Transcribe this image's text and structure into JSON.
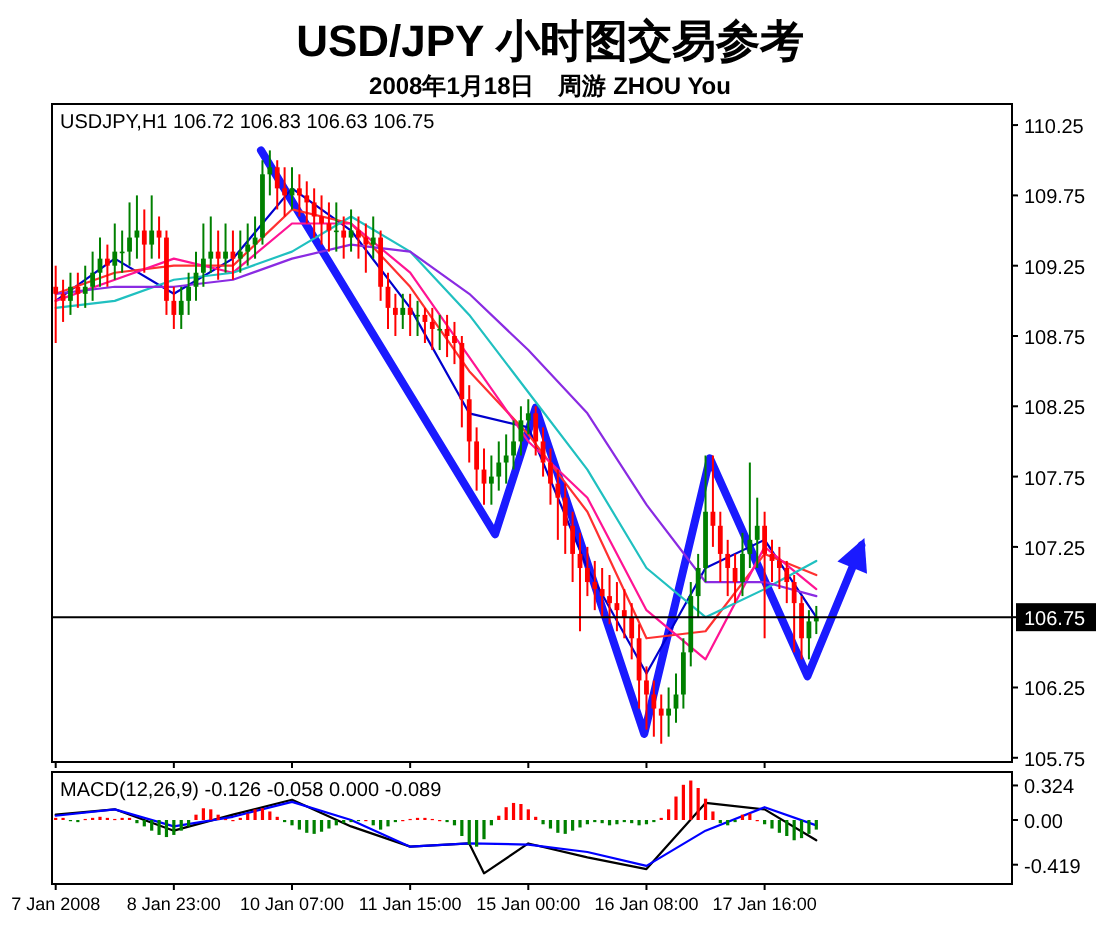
{
  "chart_data": [
    {
      "type": "candlestick",
      "title": "USD/JPY 小时图交易参考",
      "subtitle": "2008年1月18日　周游 ZHOU You",
      "annotations": [
        "USDJPY,H1  106.72 106.83 106.63 106.75"
      ],
      "ylim": [
        105.72,
        110.4
      ],
      "yticks": [
        105.75,
        106.25,
        106.75,
        107.25,
        107.75,
        108.25,
        108.75,
        109.25,
        109.75,
        110.25
      ],
      "categories": [
        "7 Jan 2008",
        null,
        null,
        null,
        null,
        null,
        null,
        null,
        null,
        null,
        null,
        null,
        null,
        null,
        null,
        null,
        "8 Jan 23:00",
        null,
        null,
        null,
        null,
        null,
        null,
        null,
        null,
        null,
        null,
        null,
        null,
        null,
        null,
        null,
        "10 Jan 07:00",
        null,
        null,
        null,
        null,
        null,
        null,
        null,
        null,
        null,
        null,
        null,
        null,
        null,
        null,
        null,
        "11 Jan 15:00",
        null,
        null,
        null,
        null,
        null,
        null,
        null,
        null,
        null,
        null,
        null,
        null,
        null,
        null,
        null,
        "15 Jan 00:00",
        null,
        null,
        null,
        null,
        null,
        null,
        null,
        null,
        null,
        null,
        null,
        null,
        null,
        null,
        null,
        "16 Jan 08:00",
        null,
        null,
        null,
        null,
        null,
        null,
        null,
        null,
        null,
        null,
        null,
        null,
        null,
        null,
        null,
        "17 Jan 16:00",
        null,
        null,
        null,
        null,
        null,
        null,
        null,
        null,
        null,
        null,
        null,
        null,
        null,
        null,
        null,
        null,
        null,
        null,
        null,
        null,
        null,
        null,
        null,
        null,
        null,
        null,
        null,
        null,
        null,
        null,
        null,
        null,
        null
      ],
      "colors": [
        "#ff0000",
        "#ff0000",
        "#008000",
        "#ff0000",
        "#008000",
        "#008000",
        "#008000",
        "#ff0000",
        "#008000",
        "#008000",
        "#008000",
        "#008000",
        "#ff0000",
        "#008000",
        "#ff0000",
        "#ff0000",
        "#ff0000",
        "#008000",
        "#008000",
        "#008000",
        "#008000",
        "#008000",
        "#ff0000",
        "#008000",
        "#ff0000",
        "#008000",
        "#008000",
        "#008000",
        "#008000",
        "#008000",
        "#ff0000",
        "#ff0000",
        "#008000",
        "#ff0000",
        "#ff0000",
        "#ff0000",
        "#ff0000",
        "#ff0000",
        "#008000",
        "#ff0000",
        "#008000",
        "#ff0000",
        "#ff0000",
        "#008000",
        "#ff0000",
        "#ff0000",
        "#ff0000",
        "#008000",
        "#ff0000",
        "#008000",
        "#ff0000",
        "#ff0000",
        "#008000",
        "#ff0000",
        "#ff0000",
        "#ff0000",
        "#ff0000",
        "#ff0000",
        "#ff0000",
        "#008000",
        "#008000",
        "#008000",
        "#008000",
        "#008000",
        "#008000",
        "#ff0000",
        "#ff0000",
        "#ff0000",
        "#ff0000",
        "#ff0000",
        "#ff0000",
        "#ff0000",
        "#ff0000",
        "#ff0000",
        "#ff0000",
        "#ff0000",
        "#ff0000",
        "#ff0000",
        "#ff0000",
        "#ff0000",
        "#ff0000",
        "#ff0000",
        "#ff0000",
        "#008000",
        "#008000",
        "#008000",
        "#008000",
        "#008000",
        "#008000",
        "#ff0000",
        "#ff0000",
        "#ff0000",
        "#ff0000",
        "#008000",
        "#008000",
        "#008000",
        "#ff0000",
        "#ff0000",
        "#ff0000",
        "#ff0000",
        "#ff0000",
        "#ff0000",
        "#008000",
        "#008000",
        null,
        null,
        null,
        null,
        null,
        null,
        null,
        null,
        null,
        null,
        null,
        null,
        null,
        null,
        null,
        null,
        null,
        null,
        null,
        null,
        null,
        null,
        null,
        null,
        null,
        null
      ],
      "ohlc": [
        [
          109.1,
          109.25,
          108.7,
          109.05
        ],
        [
          109.05,
          109.15,
          108.85,
          109.0
        ],
        [
          109.0,
          109.2,
          108.9,
          109.1
        ],
        [
          109.1,
          109.2,
          108.95,
          109.05
        ],
        [
          109.05,
          109.25,
          108.95,
          109.1
        ],
        [
          109.1,
          109.35,
          109.0,
          109.2
        ],
        [
          109.2,
          109.45,
          109.1,
          109.3
        ],
        [
          109.3,
          109.4,
          109.1,
          109.25
        ],
        [
          109.25,
          109.55,
          109.15,
          109.35
        ],
        [
          109.35,
          109.5,
          109.2,
          109.35
        ],
        [
          109.35,
          109.7,
          109.25,
          109.45
        ],
        [
          109.45,
          109.75,
          109.3,
          109.5
        ],
        [
          109.5,
          109.65,
          109.2,
          109.4
        ],
        [
          109.4,
          109.75,
          109.3,
          109.5
        ],
        [
          109.5,
          109.6,
          109.3,
          109.45
        ],
        [
          109.45,
          109.5,
          108.9,
          109.0
        ],
        [
          109.0,
          109.1,
          108.8,
          108.9
        ],
        [
          108.9,
          109.1,
          108.8,
          109.0
        ],
        [
          109.0,
          109.2,
          108.9,
          109.1
        ],
        [
          109.1,
          109.35,
          109.0,
          109.2
        ],
        [
          109.2,
          109.55,
          109.1,
          109.3
        ],
        [
          109.3,
          109.6,
          109.2,
          109.35
        ],
        [
          109.35,
          109.5,
          109.15,
          109.3
        ],
        [
          109.3,
          109.55,
          109.2,
          109.35
        ],
        [
          109.35,
          109.5,
          109.15,
          109.3
        ],
        [
          109.3,
          109.5,
          109.2,
          109.35
        ],
        [
          109.35,
          109.55,
          109.25,
          109.4
        ],
        [
          109.4,
          109.6,
          109.3,
          109.45
        ],
        [
          109.45,
          110.0,
          109.4,
          109.9
        ],
        [
          109.9,
          110.07,
          109.75,
          109.95
        ],
        [
          109.95,
          110.0,
          109.65,
          109.8
        ],
        [
          109.8,
          109.95,
          109.6,
          109.75
        ],
        [
          109.75,
          109.95,
          109.65,
          109.8
        ],
        [
          109.8,
          109.9,
          109.6,
          109.75
        ],
        [
          109.75,
          109.85,
          109.55,
          109.7
        ],
        [
          109.7,
          109.8,
          109.45,
          109.6
        ],
        [
          109.6,
          109.75,
          109.4,
          109.55
        ],
        [
          109.55,
          109.7,
          109.35,
          109.5
        ],
        [
          109.5,
          109.7,
          109.35,
          109.5
        ],
        [
          109.5,
          109.6,
          109.3,
          109.45
        ],
        [
          109.45,
          109.65,
          109.35,
          109.5
        ],
        [
          109.5,
          109.6,
          109.3,
          109.45
        ],
        [
          109.45,
          109.55,
          109.2,
          109.4
        ],
        [
          109.4,
          109.6,
          109.3,
          109.45
        ],
        [
          109.45,
          109.5,
          109.0,
          109.1
        ],
        [
          109.1,
          109.2,
          108.8,
          108.95
        ],
        [
          108.95,
          109.05,
          108.75,
          108.9
        ],
        [
          108.9,
          109.05,
          108.8,
          108.95
        ],
        [
          108.95,
          109.05,
          108.75,
          108.9
        ],
        [
          108.9,
          109.0,
          108.75,
          108.9
        ],
        [
          108.9,
          108.95,
          108.7,
          108.85
        ],
        [
          108.85,
          108.95,
          108.65,
          108.8
        ],
        [
          108.8,
          108.9,
          108.65,
          108.8
        ],
        [
          108.8,
          108.9,
          108.6,
          108.75
        ],
        [
          108.75,
          108.85,
          108.55,
          108.7
        ],
        [
          108.7,
          108.75,
          108.1,
          108.3
        ],
        [
          108.3,
          108.4,
          107.85,
          108.0
        ],
        [
          108.0,
          108.1,
          107.65,
          107.8
        ],
        [
          107.8,
          107.95,
          107.55,
          107.7
        ],
        [
          107.7,
          107.9,
          107.55,
          107.75
        ],
        [
          107.75,
          108.0,
          107.65,
          107.85
        ],
        [
          107.85,
          108.05,
          107.7,
          107.9
        ],
        [
          107.9,
          108.15,
          107.8,
          108.0
        ],
        [
          108.0,
          108.25,
          107.9,
          108.15
        ],
        [
          108.15,
          108.3,
          108.05,
          108.2
        ],
        [
          108.2,
          108.25,
          107.9,
          108.0
        ],
        [
          108.0,
          108.1,
          107.75,
          107.85
        ],
        [
          107.85,
          107.95,
          107.55,
          107.7
        ],
        [
          107.7,
          107.8,
          107.3,
          107.6
        ],
        [
          107.6,
          107.7,
          107.2,
          107.4
        ],
        [
          107.4,
          107.5,
          107.0,
          107.2
        ],
        [
          107.2,
          107.35,
          106.65,
          107.1
        ],
        [
          107.1,
          107.25,
          106.9,
          107.0
        ],
        [
          107.0,
          107.15,
          106.8,
          106.95
        ],
        [
          106.95,
          107.1,
          106.75,
          106.9
        ],
        [
          106.9,
          107.05,
          106.7,
          106.85
        ],
        [
          106.85,
          107.0,
          106.65,
          106.8
        ],
        [
          106.8,
          106.95,
          106.6,
          106.75
        ],
        [
          106.75,
          106.85,
          106.45,
          106.6
        ],
        [
          106.6,
          106.7,
          106.1,
          106.3
        ],
        [
          106.3,
          106.4,
          105.95,
          106.2
        ],
        [
          106.2,
          106.3,
          105.9,
          106.1
        ],
        [
          106.1,
          106.2,
          105.85,
          106.05
        ],
        [
          106.05,
          106.25,
          105.9,
          106.1
        ],
        [
          106.1,
          106.35,
          106.0,
          106.2
        ],
        [
          106.2,
          106.6,
          106.1,
          106.5
        ],
        [
          106.5,
          107.0,
          106.4,
          106.9
        ],
        [
          106.9,
          107.2,
          106.75,
          107.1
        ],
        [
          107.1,
          107.9,
          107.0,
          107.5
        ],
        [
          107.5,
          107.9,
          107.25,
          107.4
        ],
        [
          107.4,
          107.5,
          107.0,
          107.2
        ],
        [
          107.2,
          107.3,
          106.9,
          107.1
        ],
        [
          107.1,
          107.2,
          106.85,
          107.0
        ],
        [
          107.0,
          107.35,
          106.9,
          107.2
        ],
        [
          107.2,
          107.85,
          107.1,
          107.3
        ],
        [
          107.3,
          107.6,
          107.1,
          107.4
        ],
        [
          107.4,
          107.5,
          106.6,
          107.2
        ],
        [
          107.2,
          107.3,
          107.0,
          107.15
        ],
        [
          107.15,
          107.25,
          106.95,
          107.1
        ],
        [
          107.1,
          107.15,
          106.85,
          107.0
        ],
        [
          107.0,
          107.05,
          106.5,
          106.85
        ],
        [
          106.85,
          106.9,
          106.45,
          106.6
        ],
        [
          106.6,
          106.8,
          106.45,
          106.72
        ],
        [
          106.72,
          106.83,
          106.63,
          106.75
        ],
        null,
        null,
        null,
        null,
        null,
        null,
        null,
        null,
        null,
        null,
        null,
        null,
        null,
        null,
        null,
        null,
        null,
        null,
        null,
        null,
        null,
        null,
        null,
        null,
        null,
        null
      ],
      "series": [
        {
          "type": "line",
          "color": "#0000cd",
          "values": [
            109.0,
            null,
            null,
            null,
            null,
            null,
            null,
            null,
            109.3,
            null,
            null,
            null,
            null,
            null,
            null,
            null,
            109.05,
            null,
            null,
            null,
            null,
            null,
            null,
            null,
            109.3,
            null,
            null,
            null,
            null,
            null,
            null,
            null,
            109.8,
            null,
            null,
            null,
            null,
            null,
            null,
            null,
            109.5,
            null,
            null,
            null,
            null,
            null,
            null,
            null,
            108.95,
            null,
            null,
            null,
            null,
            null,
            null,
            null,
            108.2,
            null,
            null,
            null,
            null,
            null,
            null,
            null,
            108.1,
            null,
            null,
            null,
            null,
            null,
            null,
            null,
            107.1,
            null,
            null,
            null,
            null,
            null,
            null,
            null,
            106.35,
            null,
            null,
            null,
            null,
            null,
            null,
            null,
            107.1,
            null,
            null,
            null,
            null,
            null,
            null,
            null,
            107.3,
            null,
            null,
            null,
            null,
            null,
            null,
            106.75,
            null,
            null,
            null,
            null,
            null,
            null,
            null,
            null,
            null,
            null,
            null,
            null,
            null,
            null,
            null,
            null,
            null,
            null,
            null,
            null,
            null,
            null,
            null,
            null,
            null,
            null
          ]
        },
        {
          "type": "line",
          "color": "#ff3030",
          "values": [
            109.05,
            null,
            null,
            null,
            null,
            null,
            null,
            null,
            109.2,
            null,
            null,
            null,
            null,
            null,
            null,
            null,
            109.25,
            null,
            null,
            null,
            null,
            null,
            null,
            null,
            109.25,
            null,
            null,
            null,
            null,
            null,
            null,
            null,
            109.65,
            null,
            null,
            null,
            null,
            null,
            null,
            null,
            109.55,
            null,
            null,
            null,
            null,
            null,
            null,
            null,
            109.1,
            null,
            null,
            null,
            null,
            null,
            null,
            null,
            108.5,
            null,
            null,
            null,
            null,
            null,
            null,
            null,
            108.05,
            null,
            null,
            null,
            null,
            null,
            null,
            null,
            107.5,
            null,
            null,
            null,
            null,
            null,
            null,
            null,
            106.6,
            null,
            null,
            null,
            null,
            null,
            null,
            null,
            106.65,
            null,
            null,
            null,
            null,
            null,
            null,
            null,
            107.2,
            null,
            null,
            null,
            null,
            null,
            null,
            107.05,
            null,
            null,
            null,
            null,
            null,
            null,
            null,
            null,
            null,
            null,
            null,
            null,
            null,
            null,
            null,
            null,
            null,
            null,
            null,
            null,
            null,
            null,
            null,
            null,
            null,
            null
          ]
        },
        {
          "type": "line",
          "color": "#ff1493",
          "values": [
            109.0,
            null,
            null,
            null,
            null,
            null,
            null,
            null,
            109.15,
            null,
            null,
            null,
            null,
            null,
            null,
            null,
            109.3,
            null,
            null,
            null,
            null,
            null,
            null,
            null,
            109.2,
            null,
            null,
            null,
            null,
            null,
            null,
            null,
            109.55,
            null,
            null,
            null,
            null,
            null,
            null,
            null,
            109.55,
            null,
            null,
            null,
            null,
            null,
            null,
            null,
            109.2,
            null,
            null,
            null,
            null,
            null,
            null,
            null,
            108.6,
            null,
            null,
            null,
            null,
            null,
            null,
            null,
            108.0,
            null,
            null,
            null,
            null,
            null,
            null,
            null,
            107.6,
            null,
            null,
            null,
            null,
            null,
            null,
            null,
            106.8,
            null,
            null,
            null,
            null,
            null,
            null,
            null,
            106.45,
            null,
            null,
            null,
            null,
            null,
            null,
            null,
            107.25,
            null,
            null,
            null,
            null,
            null,
            null,
            106.95,
            null,
            null,
            null,
            null,
            null,
            null,
            null,
            null,
            null,
            null,
            null,
            null,
            null,
            null,
            null,
            null,
            null,
            null,
            null,
            null,
            null,
            null,
            null,
            null,
            null,
            null
          ]
        },
        {
          "type": "line",
          "color": "#20c0c0",
          "values": [
            108.95,
            null,
            null,
            null,
            null,
            null,
            null,
            null,
            109.0,
            null,
            null,
            null,
            null,
            null,
            null,
            null,
            109.15,
            null,
            null,
            null,
            null,
            null,
            null,
            null,
            109.2,
            null,
            null,
            null,
            null,
            null,
            null,
            null,
            109.35,
            null,
            null,
            null,
            null,
            null,
            null,
            null,
            109.6,
            null,
            null,
            null,
            null,
            null,
            null,
            null,
            109.35,
            null,
            null,
            null,
            null,
            null,
            null,
            null,
            108.9,
            null,
            null,
            null,
            null,
            null,
            null,
            null,
            108.35,
            null,
            null,
            null,
            null,
            null,
            null,
            null,
            107.8,
            null,
            null,
            null,
            null,
            null,
            null,
            null,
            107.1,
            null,
            null,
            null,
            null,
            null,
            null,
            null,
            106.75,
            null,
            null,
            null,
            null,
            null,
            null,
            null,
            106.95,
            null,
            null,
            null,
            null,
            null,
            null,
            107.15,
            null,
            null,
            null,
            null,
            null,
            null,
            null,
            null,
            null,
            null,
            null,
            null,
            null,
            null,
            null,
            null,
            null,
            null,
            null,
            null,
            null,
            null,
            null,
            null,
            null,
            null
          ]
        },
        {
          "type": "line",
          "color": "#8a2be2",
          "values": [
            109.05,
            null,
            null,
            null,
            null,
            null,
            null,
            null,
            109.1,
            null,
            null,
            null,
            null,
            null,
            null,
            null,
            109.1,
            null,
            null,
            null,
            null,
            null,
            null,
            null,
            109.15,
            null,
            null,
            null,
            null,
            null,
            null,
            null,
            109.3,
            null,
            null,
            null,
            null,
            null,
            null,
            null,
            109.4,
            null,
            null,
            null,
            null,
            null,
            null,
            null,
            109.35,
            null,
            null,
            null,
            null,
            null,
            null,
            null,
            109.05,
            null,
            null,
            null,
            null,
            null,
            null,
            null,
            108.65,
            null,
            null,
            null,
            null,
            null,
            null,
            null,
            108.2,
            null,
            null,
            null,
            null,
            null,
            null,
            null,
            107.55,
            null,
            null,
            null,
            null,
            null,
            null,
            null,
            107.0,
            null,
            null,
            null,
            null,
            null,
            null,
            null,
            107.0,
            null,
            null,
            null,
            null,
            null,
            null,
            106.9,
            null,
            null,
            null,
            null,
            null,
            null,
            null,
            null,
            null,
            null,
            null,
            null,
            null,
            null,
            null,
            null,
            null,
            null,
            null,
            null,
            null,
            null,
            null,
            null,
            null,
            null
          ]
        }
      ],
      "ref_lines": [
        {
          "axis": "y",
          "value": 106.75,
          "label": "106.75",
          "color": "#000000"
        }
      ]
    },
    {
      "type": "bar",
      "annotations": [
        "MACD(12,26,9) -0.126 -0.058 0.000 -0.089"
      ],
      "ylim": [
        -0.6,
        0.45
      ],
      "yticks": [
        -0.419,
        {
          "value": 0,
          "label": "0.00"
        },
        0.324
      ],
      "tick_labels": "y",
      "categories": [
        null,
        null,
        null,
        null,
        null,
        null,
        null,
        null,
        null,
        null,
        null,
        null,
        null,
        null,
        null,
        null,
        null,
        null,
        null,
        null,
        null,
        null,
        null,
        null,
        null,
        null,
        null,
        null,
        null,
        null,
        null,
        null,
        null,
        null,
        null,
        null,
        null,
        null,
        null,
        null,
        null,
        null,
        null,
        null,
        null,
        null,
        null,
        null,
        null,
        null,
        null,
        null,
        null,
        null,
        null,
        null,
        null,
        null,
        null,
        null,
        null,
        null,
        null,
        null,
        null,
        null,
        null,
        null,
        null,
        null,
        null,
        null,
        null,
        null,
        null,
        null,
        null,
        null,
        null,
        null,
        null,
        null,
        null,
        null,
        null,
        null,
        null,
        null,
        null,
        null,
        null,
        null,
        null,
        null,
        null,
        null,
        null,
        null,
        null,
        null,
        null,
        null,
        null,
        null,
        null,
        null,
        null,
        null,
        null,
        null,
        null,
        null,
        null,
        null,
        null,
        null,
        null,
        null,
        null,
        null,
        null,
        null,
        null,
        null,
        null,
        null,
        null,
        null,
        null,
        null
      ],
      "colors": [
        "#ff0000",
        "#ff0000",
        "#008000",
        "#008000",
        "#ff0000",
        "#ff0000",
        "#ff0000",
        "#ff0000",
        "#ff0000",
        "#ff0000",
        "#ff0000",
        "#008000",
        "#008000",
        "#008000",
        "#008000",
        "#008000",
        "#008000",
        "#008000",
        "#008000",
        "#ff0000",
        "#ff0000",
        "#ff0000",
        "#ff0000",
        "#ff0000",
        "#ff0000",
        "#ff0000",
        "#ff0000",
        "#ff0000",
        "#ff0000",
        "#ff0000",
        "#ff0000",
        "#008000",
        "#008000",
        "#008000",
        "#008000",
        "#008000",
        "#008000",
        "#008000",
        "#008000",
        "#008000",
        "#008000",
        "#008000",
        "#ff0000",
        "#008000",
        "#008000",
        "#008000",
        "#008000",
        "#ff0000",
        "#ff0000",
        "#ff0000",
        "#ff0000",
        "#ff0000",
        "#ff0000",
        "#008000",
        "#008000",
        "#008000",
        "#008000",
        "#008000",
        "#008000",
        "#008000",
        "#ff0000",
        "#ff0000",
        "#ff0000",
        "#ff0000",
        "#ff0000",
        "#ff0000",
        "#008000",
        "#008000",
        "#008000",
        "#008000",
        "#008000",
        "#008000",
        "#008000",
        "#008000",
        "#008000",
        "#008000",
        "#008000",
        "#008000",
        "#008000",
        "#008000",
        "#008000",
        "#008000",
        "#ff0000",
        "#ff0000",
        "#ff0000",
        "#ff0000",
        "#ff0000",
        "#ff0000",
        "#ff0000",
        "#ff0000",
        "#008000",
        "#008000",
        "#008000",
        "#ff0000",
        "#ff0000",
        "#ff0000",
        "#008000",
        "#008000",
        "#008000",
        "#008000",
        "#008000",
        "#008000",
        "#008000",
        "#008000",
        null,
        null,
        null,
        null,
        null,
        null,
        null,
        null,
        null,
        null,
        null,
        null,
        null,
        null,
        null,
        null,
        null,
        null,
        null,
        null,
        null,
        null,
        null,
        null,
        null,
        null
      ],
      "values": [
        0.02,
        0.02,
        -0.01,
        -0.02,
        0.01,
        0.02,
        0.03,
        0.02,
        0.01,
        0.02,
        0.02,
        -0.03,
        -0.06,
        -0.1,
        -0.14,
        -0.16,
        -0.14,
        -0.1,
        -0.06,
        0.05,
        0.11,
        0.1,
        0.05,
        0.01,
        0.0,
        0.02,
        0.06,
        0.1,
        0.11,
        0.08,
        0.03,
        -0.02,
        -0.05,
        -0.09,
        -0.12,
        -0.13,
        -0.11,
        -0.08,
        -0.05,
        -0.03,
        -0.02,
        -0.01,
        0.0,
        -0.05,
        -0.09,
        -0.06,
        -0.02,
        0.0,
        0.01,
        0.02,
        0.02,
        0.01,
        0.0,
        -0.02,
        -0.05,
        -0.15,
        -0.23,
        -0.25,
        -0.18,
        -0.05,
        0.04,
        0.12,
        0.16,
        0.15,
        0.1,
        0.03,
        -0.04,
        -0.08,
        -0.12,
        -0.13,
        -0.1,
        -0.07,
        -0.04,
        -0.02,
        -0.03,
        -0.05,
        -0.04,
        -0.02,
        -0.03,
        -0.05,
        -0.04,
        -0.02,
        0.02,
        0.1,
        0.22,
        0.33,
        0.37,
        0.3,
        0.2,
        0.08,
        -0.03,
        -0.05,
        -0.02,
        0.05,
        0.06,
        0.0,
        -0.04,
        -0.08,
        -0.12,
        -0.15,
        -0.19,
        -0.17,
        -0.13,
        -0.09,
        null,
        null,
        null,
        null,
        null,
        null,
        null,
        null,
        null,
        null,
        null,
        null,
        null,
        null,
        null,
        null,
        null,
        null,
        null,
        null,
        null,
        null,
        null,
        null,
        null,
        null
      ],
      "series": [
        {
          "type": "line",
          "color": "#000000",
          "values": [
            0.05,
            null,
            null,
            null,
            null,
            null,
            null,
            null,
            0.1,
            null,
            null,
            null,
            null,
            null,
            null,
            null,
            -0.1,
            null,
            null,
            null,
            null,
            null,
            null,
            null,
            0.05,
            null,
            null,
            null,
            null,
            null,
            null,
            null,
            0.19,
            null,
            null,
            null,
            null,
            null,
            null,
            null,
            -0.06,
            null,
            null,
            null,
            null,
            null,
            null,
            null,
            -0.25,
            null,
            null,
            null,
            null,
            null,
            null,
            null,
            -0.22,
            null,
            -0.5,
            null,
            null,
            null,
            null,
            null,
            -0.22,
            null,
            null,
            null,
            null,
            null,
            null,
            null,
            -0.35,
            null,
            null,
            null,
            null,
            null,
            null,
            null,
            -0.46,
            null,
            null,
            null,
            null,
            null,
            null,
            null,
            0.16,
            null,
            null,
            null,
            null,
            null,
            null,
            null,
            0.1,
            null,
            null,
            null,
            null,
            null,
            null,
            -0.19,
            null,
            null,
            null,
            null,
            null,
            null,
            null,
            null,
            null,
            null,
            null,
            null,
            null,
            null,
            null,
            null,
            null,
            null,
            null,
            null,
            null,
            null,
            null,
            null,
            null,
            null
          ]
        },
        {
          "type": "line",
          "color": "#0000ff",
          "values": [
            0.04,
            null,
            null,
            null,
            null,
            null,
            null,
            null,
            0.1,
            null,
            null,
            null,
            null,
            null,
            null,
            null,
            -0.06,
            null,
            null,
            null,
            null,
            null,
            null,
            null,
            0.03,
            null,
            null,
            null,
            null,
            null,
            null,
            null,
            0.17,
            null,
            null,
            null,
            null,
            null,
            null,
            null,
            0.0,
            null,
            null,
            null,
            null,
            null,
            null,
            null,
            -0.25,
            null,
            null,
            null,
            null,
            null,
            null,
            null,
            -0.22,
            null,
            null,
            null,
            null,
            null,
            null,
            null,
            -0.23,
            null,
            null,
            null,
            null,
            null,
            null,
            null,
            -0.3,
            null,
            null,
            null,
            null,
            null,
            null,
            null,
            -0.43,
            null,
            null,
            null,
            null,
            null,
            null,
            null,
            -0.1,
            null,
            null,
            null,
            null,
            null,
            null,
            null,
            0.12,
            null,
            null,
            null,
            null,
            null,
            null,
            -0.05,
            null,
            null,
            null,
            null,
            null,
            null,
            null,
            null,
            null,
            null,
            null,
            null,
            null,
            null,
            null,
            null,
            null,
            null,
            null,
            null,
            null,
            null,
            null,
            null,
            null,
            null
          ]
        }
      ]
    }
  ]
}
